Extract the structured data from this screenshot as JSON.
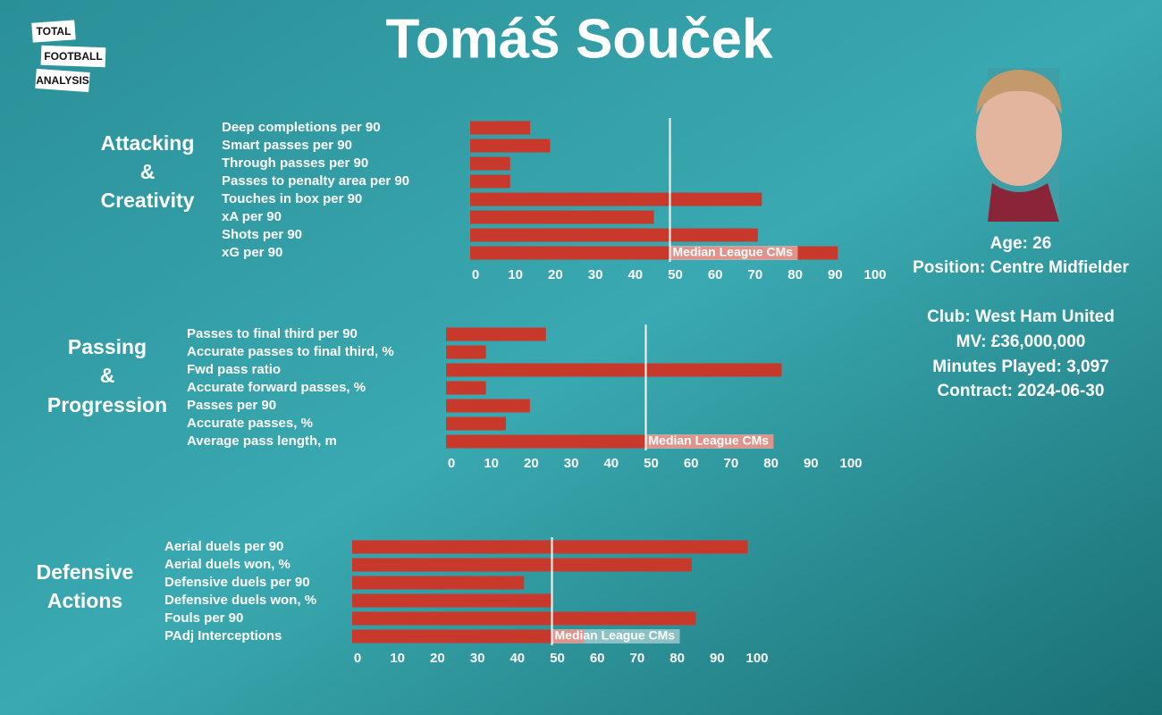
{
  "title": "Tomáš Souček",
  "logo": [
    "TOTAL",
    "FOOTBALL",
    "ANALYSIS"
  ],
  "player_info": [
    "Age: 26",
    "Position: Centre Midfielder",
    "Club: West Ham United",
    "MV: £36,000,000",
    "Minutes Played: 3,097",
    "Contract: 2024-06-30"
  ],
  "chart_data": [
    {
      "type": "bar",
      "orientation": "horizontal",
      "title": [
        "Attacking",
        "&",
        "Creativity"
      ],
      "categories": [
        "Deep completions per 90",
        "Smart passes per 90",
        "Through passes per 90",
        "Passes to penalty area per 90",
        "Touches in box per 90",
        "xA per 90",
        "Shots per 90",
        "xG per 90"
      ],
      "values": [
        15,
        20,
        10,
        10,
        73,
        46,
        72,
        92
      ],
      "color": "#c9392b",
      "xlim": [
        0,
        100
      ],
      "xticks": [
        0,
        10,
        20,
        30,
        40,
        50,
        60,
        70,
        80,
        90,
        100
      ],
      "median": 50,
      "median_label": "Median League CMs"
    },
    {
      "type": "bar",
      "orientation": "horizontal",
      "title": [
        "Passing",
        "&",
        "Progression"
      ],
      "categories": [
        "Passes to final third per 90",
        "Accurate passes to final third, %",
        "Fwd pass ratio",
        "Accurate forward passes, %",
        "Passes per 90",
        "Accurate passes, %",
        "Average pass length, m"
      ],
      "values": [
        25,
        10,
        84,
        10,
        21,
        15,
        82
      ],
      "color": "#c9392b",
      "xlim": [
        0,
        100
      ],
      "xticks": [
        0,
        10,
        20,
        30,
        40,
        50,
        60,
        70,
        80,
        90,
        100
      ],
      "median": 50,
      "median_label": "Median League CMs"
    },
    {
      "type": "bar",
      "orientation": "horizontal",
      "title": [
        "Defensive",
        "Actions"
      ],
      "categories": [
        "Aerial duels per 90",
        "Aerial duels won, %",
        "Defensive duels per 90",
        "Defensive duels won, %",
        "Fouls per 90",
        "PAdj Interceptions"
      ],
      "values": [
        99,
        85,
        43,
        50,
        86,
        58
      ],
      "color": "#c9392b",
      "xlim": [
        0,
        100
      ],
      "xticks": [
        0,
        10,
        20,
        30,
        40,
        50,
        60,
        70,
        80,
        90,
        100
      ],
      "median": 50,
      "median_label": "Median League CMs"
    }
  ]
}
